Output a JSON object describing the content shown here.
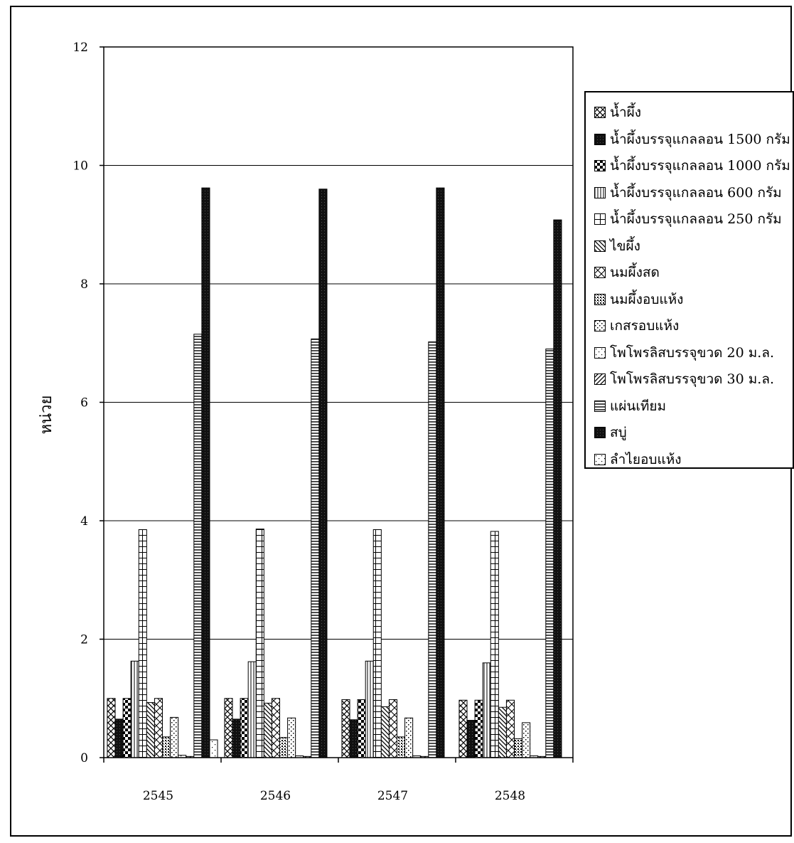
{
  "chart_data": {
    "type": "bar",
    "title": "",
    "xlabel": "",
    "ylabel": "หน่วย",
    "ylim": [
      0,
      12
    ],
    "yticks": [
      "0",
      "2",
      "4",
      "6",
      "8",
      "10",
      "12"
    ],
    "categories": [
      "2545",
      "2546",
      "2547",
      "2548"
    ],
    "grid": true,
    "legend_position": "right",
    "series": [
      {
        "name": "น้ำผึ้ง",
        "values": [
          1.0,
          1.0,
          0.98,
          0.97
        ],
        "pattern": "crosshatch-x"
      },
      {
        "name": "น้ำผึ้งบรรจุแกลลอน 1500 กรัม",
        "values": [
          0.65,
          0.65,
          0.64,
          0.63
        ],
        "pattern": "solid-dark"
      },
      {
        "name": "น้ำผึ้งบรรจุแกลลอน 1000 กรัม",
        "values": [
          1.0,
          1.0,
          0.98,
          0.97
        ],
        "pattern": "checker"
      },
      {
        "name": "น้ำผึ้งบรรจุแกลลอน 600 กรัม",
        "values": [
          1.63,
          1.62,
          1.63,
          1.6
        ],
        "pattern": "vertical"
      },
      {
        "name": "น้ำผึ้งบรรจุแกลลอน 250 กรัม",
        "values": [
          3.85,
          3.86,
          3.85,
          3.82
        ],
        "pattern": "grid-large"
      },
      {
        "name": "ไขผึ้ง",
        "values": [
          0.93,
          0.92,
          0.86,
          0.85
        ],
        "pattern": "diagonal-back"
      },
      {
        "name": "นมผึ้งสด",
        "values": [
          1.0,
          1.0,
          0.98,
          0.97
        ],
        "pattern": "cross-diagonal"
      },
      {
        "name": "นมผึ้งอบแห้ง",
        "values": [
          0.35,
          0.34,
          0.35,
          0.32
        ],
        "pattern": "dots-dense"
      },
      {
        "name": "เกสรอบแห้ง",
        "values": [
          0.68,
          0.67,
          0.67,
          0.59
        ],
        "pattern": "dots-sparse"
      },
      {
        "name": "โพโพรลิสบรรจุขวด 20 ม.ล.",
        "values": [
          0.04,
          0.03,
          0.03,
          0.03
        ],
        "pattern": "dots-light"
      },
      {
        "name": "โพโพรลิสบรรจุขวด 30 ม.ล.",
        "values": [
          0.02,
          0.02,
          0.02,
          0.02
        ],
        "pattern": "diagonal-fwd"
      },
      {
        "name": "แผ่นเทียม",
        "values": [
          7.15,
          7.07,
          7.02,
          6.9
        ],
        "pattern": "horizontal"
      },
      {
        "name": "สบู่",
        "values": [
          9.62,
          9.6,
          9.62,
          9.08
        ],
        "pattern": "solid-dark"
      },
      {
        "name": "ลำไยอบแห้ง",
        "values": [
          0.3,
          0.0,
          0.0,
          0.0
        ],
        "pattern": "dots-light"
      }
    ]
  }
}
